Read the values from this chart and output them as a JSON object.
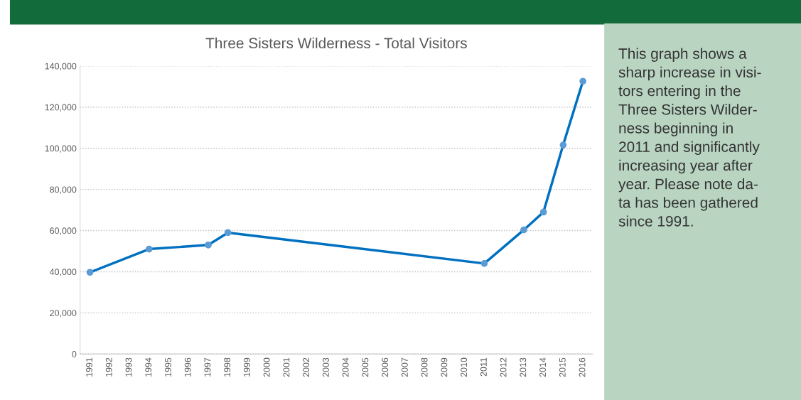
{
  "chart_data": {
    "type": "line",
    "title": "Three Sisters Wilderness - Total Visitors",
    "categories": [
      "1991",
      "1992",
      "1993",
      "1994",
      "1995",
      "1996",
      "1997",
      "1998",
      "1999",
      "2000",
      "2001",
      "2002",
      "2003",
      "2004",
      "2005",
      "2006",
      "2007",
      "2008",
      "2009",
      "2010",
      "2011",
      "2012",
      "2013",
      "2014",
      "2015",
      "2016"
    ],
    "series": [
      {
        "color": "#0070c0",
        "values": [
          39700,
          null,
          null,
          51000,
          null,
          null,
          53000,
          59000,
          null,
          null,
          null,
          null,
          null,
          null,
          null,
          null,
          null,
          null,
          null,
          null,
          44000,
          null,
          60300,
          69000,
          101600,
          132600
        ]
      }
    ],
    "ylim": [
      0,
      140000
    ],
    "yticks": [
      {
        "value": 0,
        "label": "0"
      },
      {
        "value": 20000,
        "label": "20,000"
      },
      {
        "value": 40000,
        "label": "40,000"
      },
      {
        "value": 60000,
        "label": "60,000"
      },
      {
        "value": 80000,
        "label": "80,000"
      },
      {
        "value": 100000,
        "label": "100,000"
      },
      {
        "value": 120000,
        "label": "120,000"
      },
      {
        "value": 140000,
        "label": "140,000"
      }
    ],
    "grid": "y",
    "marker": "circle",
    "line_style": "solid",
    "legend": false,
    "annotations": [
      "This graph shows a\nsharp increase in visi-\ntors entering in the\nThree Sisters Wilder-\nness beginning in\n2011 and significantly\nincreasing year after\nyear. Please note da-\nta has been gathered\nsince 1991."
    ]
  }
}
